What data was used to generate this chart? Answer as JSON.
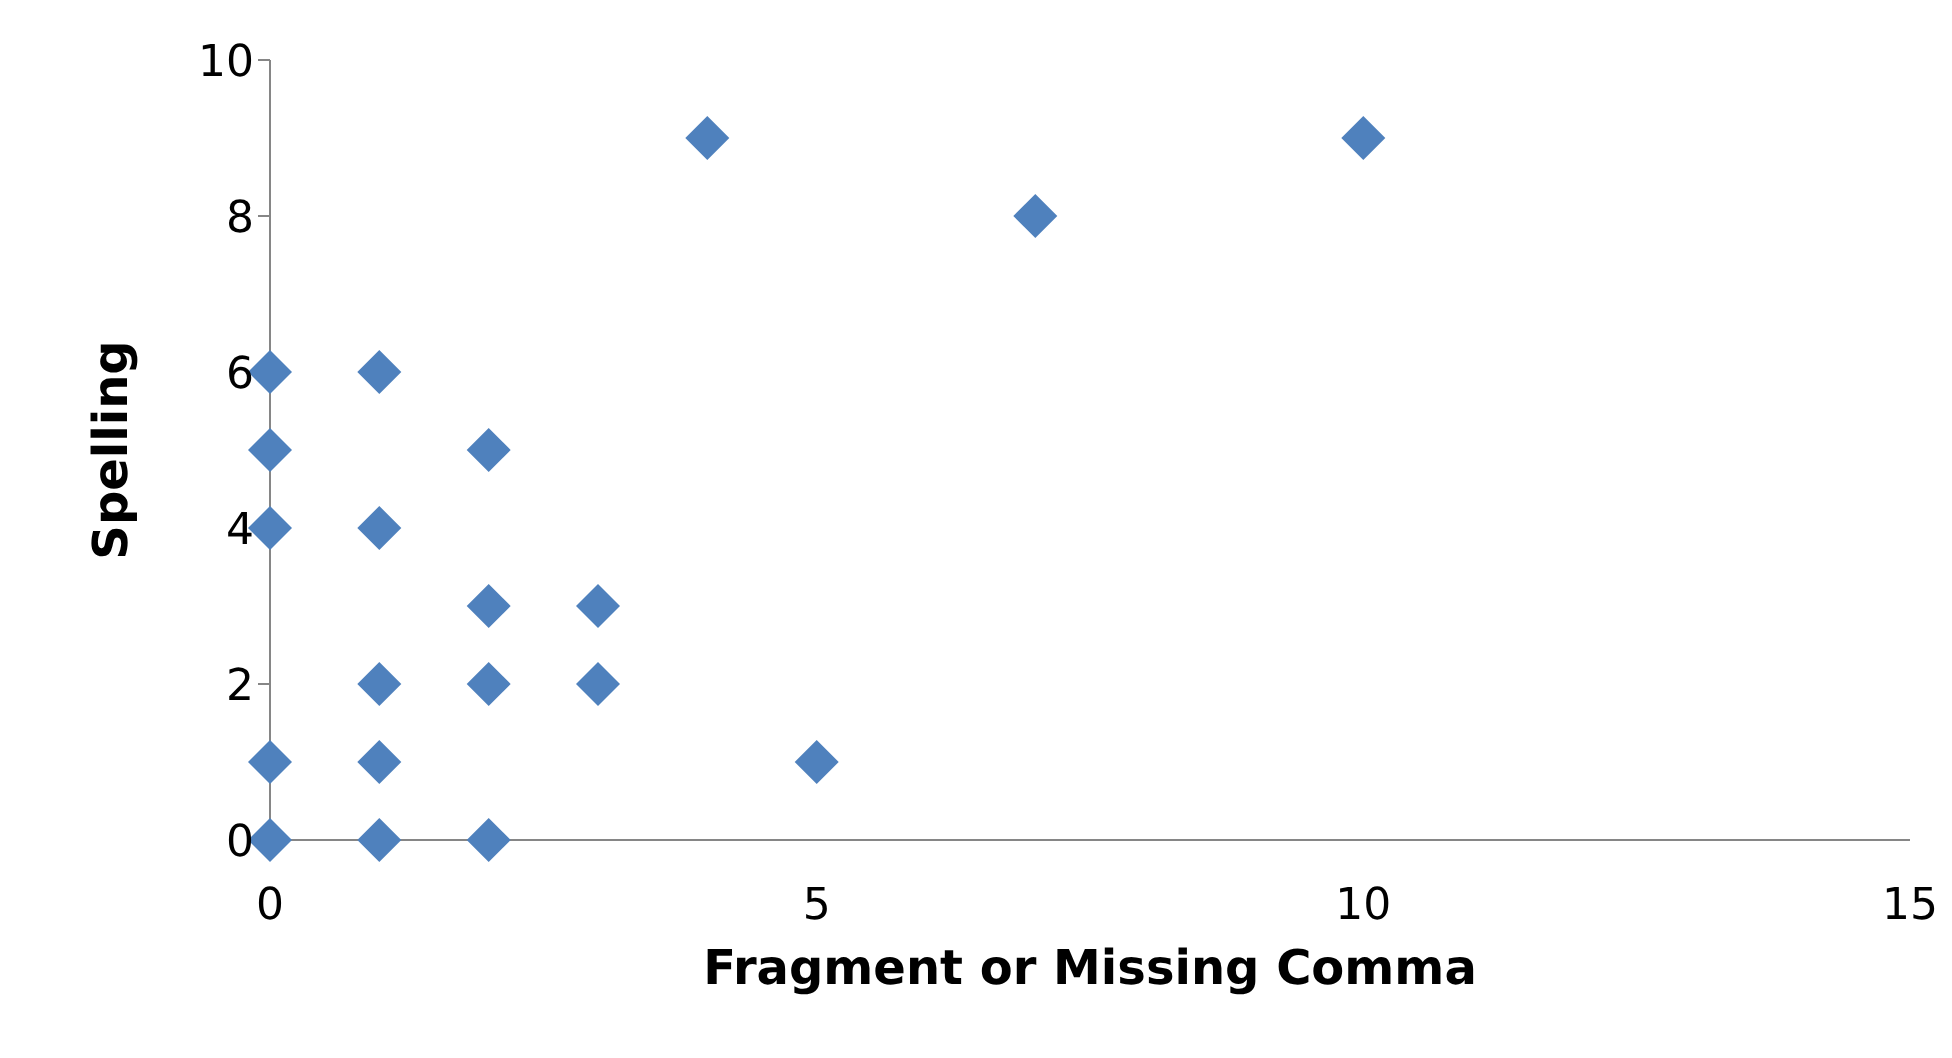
{
  "chart_data": {
    "type": "scatter",
    "xlabel": "Fragment or Missing Comma",
    "ylabel": "Spelling",
    "x": [
      0,
      0,
      0,
      0,
      0,
      1,
      1,
      1,
      1,
      1,
      2,
      2,
      2,
      2,
      3,
      3,
      4,
      5,
      7,
      10
    ],
    "values": [
      6,
      5,
      4,
      1,
      0,
      6,
      4,
      2,
      1,
      0,
      5,
      3,
      2,
      0,
      3,
      2,
      9,
      1,
      8,
      9
    ],
    "color": "#4f81bd",
    "marker": "diamond",
    "xlim": [
      0,
      15
    ],
    "xticks": [
      0,
      5,
      10,
      15
    ],
    "ylim": [
      0,
      10
    ],
    "yticks": [
      0,
      2,
      4,
      6,
      8,
      10
    ],
    "grid": false,
    "legend": false
  }
}
